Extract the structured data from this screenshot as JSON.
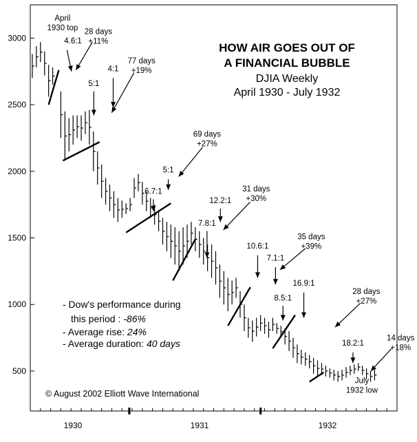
{
  "chart_data": {
    "type": "bar",
    "subtype": "weekly high-low price bars",
    "title_line1": "HOW AIR GOES OUT OF",
    "title_line2": "A FINANCIAL BUBBLE",
    "subtitle": "DJIA  Weekly",
    "period": "April 1930 - July 1932",
    "y_ticks": [
      500,
      1000,
      1500,
      2000,
      2500,
      3000
    ],
    "y_tick_labels": [
      "500",
      "1000",
      "1500",
      "2000",
      "2500",
      "3000"
    ],
    "ylim": [
      200,
      3250
    ],
    "x_tick_labels": [
      "1930",
      "1931",
      "1932"
    ],
    "x_year_positions": [
      5.5,
      12,
      18.5
    ],
    "xlim": [
      3.5,
      21.5
    ],
    "bars": [
      [
        3.6,
        2700,
        2880
      ],
      [
        3.8,
        2780,
        2940
      ],
      [
        4.0,
        2820,
        2970
      ],
      [
        4.2,
        2720,
        2900
      ],
      [
        4.4,
        2560,
        2800
      ],
      [
        4.6,
        2650,
        2780
      ],
      [
        5.0,
        2250,
        2600
      ],
      [
        5.2,
        2080,
        2450
      ],
      [
        5.4,
        2150,
        2400
      ],
      [
        5.6,
        2200,
        2420
      ],
      [
        5.8,
        2250,
        2420
      ],
      [
        6.0,
        2230,
        2420
      ],
      [
        6.2,
        2280,
        2450
      ],
      [
        6.4,
        2200,
        2460
      ],
      [
        6.6,
        2000,
        2300
      ],
      [
        6.8,
        1900,
        2150
      ],
      [
        7.0,
        1800,
        2050
      ],
      [
        7.2,
        1750,
        1950
      ],
      [
        7.4,
        1700,
        1900
      ],
      [
        7.6,
        1650,
        1850
      ],
      [
        7.8,
        1620,
        1800
      ],
      [
        8.0,
        1650,
        1780
      ],
      [
        8.2,
        1680,
        1760
      ],
      [
        8.4,
        1700,
        1800
      ],
      [
        8.6,
        1800,
        1950
      ],
      [
        8.8,
        1850,
        1980
      ],
      [
        9.0,
        1750,
        1920
      ],
      [
        9.2,
        1700,
        1850
      ],
      [
        9.4,
        1650,
        1800
      ],
      [
        9.6,
        1600,
        1750
      ],
      [
        9.8,
        1550,
        1700
      ],
      [
        10.0,
        1450,
        1650
      ],
      [
        10.2,
        1400,
        1620
      ],
      [
        10.4,
        1350,
        1600
      ],
      [
        10.6,
        1300,
        1580
      ],
      [
        10.8,
        1250,
        1550
      ],
      [
        11.0,
        1300,
        1580
      ],
      [
        11.2,
        1350,
        1600
      ],
      [
        11.4,
        1450,
        1620
      ],
      [
        11.6,
        1400,
        1580
      ],
      [
        11.8,
        1350,
        1550
      ],
      [
        12.0,
        1300,
        1500
      ],
      [
        12.2,
        1250,
        1450
      ],
      [
        12.4,
        1200,
        1450
      ],
      [
        12.6,
        1150,
        1400
      ],
      [
        12.8,
        1050,
        1300
      ],
      [
        13.0,
        1000,
        1250
      ],
      [
        13.2,
        950,
        1200
      ],
      [
        13.4,
        1000,
        1180
      ],
      [
        13.6,
        1050,
        1200
      ],
      [
        13.8,
        900,
        1100
      ],
      [
        14.0,
        800,
        1000
      ],
      [
        14.2,
        750,
        900
      ],
      [
        14.4,
        720,
        880
      ],
      [
        14.6,
        760,
        900
      ],
      [
        14.8,
        800,
        920
      ],
      [
        15.0,
        780,
        900
      ],
      [
        15.2,
        750,
        870
      ],
      [
        15.4,
        800,
        900
      ],
      [
        15.6,
        780,
        860
      ],
      [
        15.8,
        750,
        840
      ],
      [
        16.0,
        700,
        820
      ],
      [
        16.2,
        650,
        800
      ],
      [
        16.4,
        600,
        750
      ],
      [
        16.6,
        560,
        700
      ],
      [
        16.8,
        550,
        660
      ],
      [
        17.0,
        540,
        640
      ],
      [
        17.2,
        520,
        620
      ],
      [
        17.4,
        480,
        600
      ],
      [
        17.6,
        460,
        580
      ],
      [
        17.8,
        470,
        560
      ],
      [
        18.0,
        460,
        540
      ],
      [
        18.2,
        450,
        520
      ],
      [
        18.4,
        430,
        510
      ],
      [
        18.6,
        420,
        500
      ],
      [
        18.8,
        430,
        510
      ],
      [
        19.0,
        450,
        530
      ],
      [
        19.2,
        470,
        540
      ],
      [
        19.4,
        480,
        550
      ],
      [
        19.6,
        500,
        560
      ],
      [
        19.8,
        470,
        540
      ],
      [
        20.0,
        440,
        520
      ],
      [
        20.2,
        420,
        500
      ],
      [
        20.4,
        430,
        510
      ]
    ],
    "trendlines": [
      [
        4.4,
        2500,
        4.9,
        2760
      ],
      [
        5.1,
        2080,
        6.9,
        2220
      ],
      [
        8.2,
        1540,
        10.4,
        1760
      ],
      [
        10.5,
        1180,
        11.6,
        1490
      ],
      [
        13.2,
        840,
        14.3,
        1130
      ],
      [
        15.4,
        670,
        16.5,
        920
      ],
      [
        17.2,
        420,
        17.9,
        490
      ]
    ],
    "annotations": [
      {
        "lines": [
          "April",
          "1930 top"
        ],
        "x": 4.2,
        "y": 3130,
        "anchor": "middle"
      },
      {
        "lines": [
          "4.6:1"
        ],
        "x": 4.9,
        "y": 2960,
        "anchor": "middle"
      },
      {
        "lines": [
          "28 days",
          "+11%"
        ],
        "x": 6.6,
        "y": 3030,
        "anchor": "middle"
      },
      {
        "lines": [
          "5:1"
        ],
        "x": 6.3,
        "y": 2640,
        "anchor": "middle"
      },
      {
        "lines": [
          "4:1"
        ],
        "x": 7.6,
        "y": 2750,
        "anchor": "middle"
      },
      {
        "lines": [
          "77 days",
          "+19%"
        ],
        "x": 9.5,
        "y": 2810,
        "anchor": "middle"
      },
      {
        "lines": [
          "69 days",
          "+27%"
        ],
        "x": 13.9,
        "y": 2260,
        "anchor": "middle"
      },
      {
        "lines": [
          "5:1"
        ],
        "x": 11.3,
        "y": 1990,
        "anchor": "middle"
      },
      {
        "lines": [
          "6.7:1"
        ],
        "x": 10.3,
        "y": 1830,
        "anchor": "middle"
      },
      {
        "lines": [
          "31 days",
          "+30%"
        ],
        "x": 17.2,
        "y": 1850,
        "anchor": "middle"
      },
      {
        "lines": [
          "12.2:1"
        ],
        "x": 14.8,
        "y": 1760,
        "anchor": "middle"
      },
      {
        "lines": [
          "7.8:1"
        ],
        "x": 13.9,
        "y": 1590,
        "anchor": "middle"
      },
      {
        "lines": [
          "35 days",
          "+39%"
        ],
        "x": 20.9,
        "y": 1490,
        "anchor": "middle"
      },
      {
        "lines": [
          "10.6:1"
        ],
        "x": 17.3,
        "y": 1420,
        "anchor": "middle"
      },
      {
        "lines": [
          "7.1:1"
        ],
        "x": 18.5,
        "y": 1330,
        "anchor": "middle"
      },
      {
        "lines": [
          "16.9:1"
        ],
        "x": 20.4,
        "y": 1140,
        "anchor": "middle"
      },
      {
        "lines": [
          "8.5:1"
        ],
        "x": 19.0,
        "y": 1030,
        "anchor": "middle"
      },
      {
        "lines": [
          "28 days",
          "+27%"
        ],
        "x": 24.6,
        "y": 1080,
        "anchor": "middle"
      },
      {
        "lines": [
          "18.2:1"
        ],
        "x": 23.7,
        "y": 690,
        "anchor": "middle"
      },
      {
        "lines": [
          "14 days",
          "+18%"
        ],
        "x": 26.9,
        "y": 730,
        "anchor": "middle"
      },
      {
        "lines": [
          "July",
          "1932 low"
        ],
        "x": 24.3,
        "y": 410,
        "anchor": "middle"
      }
    ],
    "arrows": [
      [
        4.5,
        2910,
        4.8,
        2750
      ],
      [
        6.2,
        2970,
        5.1,
        2760
      ],
      [
        6.3,
        2600,
        6.3,
        2420
      ],
      [
        7.6,
        2700,
        7.6,
        2480
      ],
      [
        9.0,
        2740,
        7.5,
        2440
      ],
      [
        13.6,
        2180,
        12.0,
        1960
      ],
      [
        11.3,
        1940,
        11.3,
        1860
      ],
      [
        10.3,
        1790,
        10.3,
        1700
      ],
      [
        16.8,
        1770,
        15.0,
        1560
      ],
      [
        14.8,
        1720,
        14.8,
        1620
      ],
      [
        13.9,
        1550,
        13.9,
        1350
      ],
      [
        20.5,
        1420,
        18.8,
        1260
      ],
      [
        17.3,
        1370,
        17.3,
        1200
      ],
      [
        18.5,
        1280,
        18.5,
        1150
      ],
      [
        20.4,
        1090,
        20.4,
        900
      ],
      [
        19.0,
        990,
        19.0,
        880
      ],
      [
        24.2,
        1010,
        22.5,
        830
      ],
      [
        23.7,
        640,
        23.7,
        560
      ],
      [
        26.3,
        670,
        24.9,
        500
      ]
    ]
  },
  "stats": {
    "line1": "- Dow's performance during",
    "line2_prefix": "this period : ",
    "line2_value": "-86%",
    "line3_prefix": "- Average rise: ",
    "line3_value": "24%",
    "line4_prefix": "- Average duration: ",
    "line4_value": "40 days"
  },
  "copyright": "© August 2002 Elliott Wave International"
}
